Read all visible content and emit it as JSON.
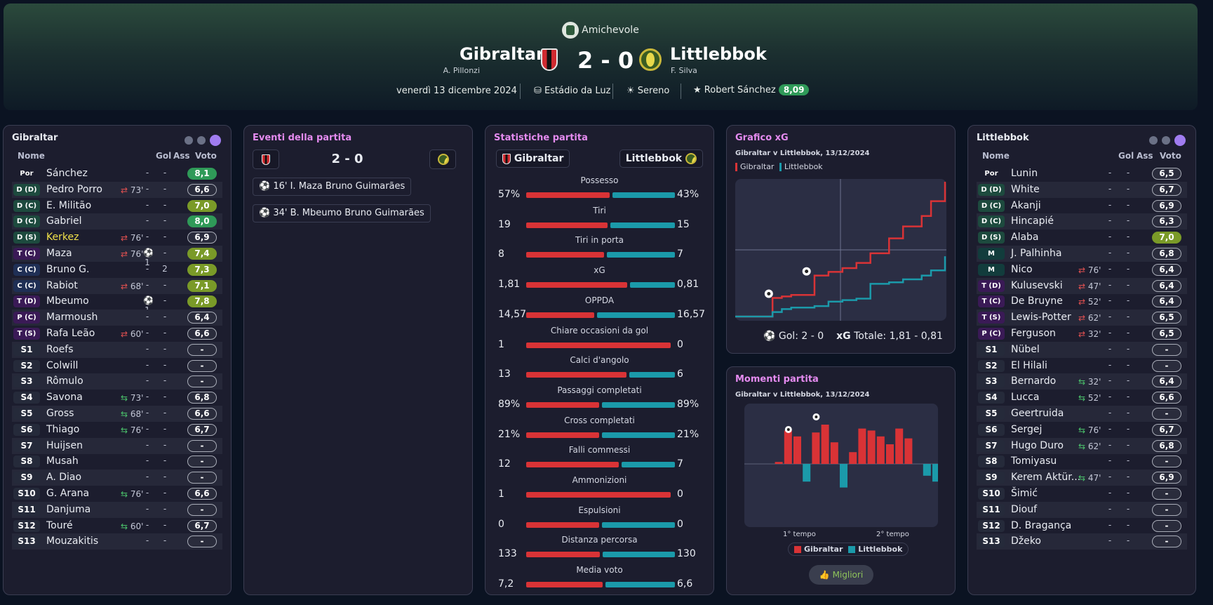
{
  "header": {
    "competition": "Amichevole",
    "home": {
      "name": "Gibraltar",
      "coach": "A. Pillonzi"
    },
    "away": {
      "name": "Littlebbok",
      "coach": "F. Silva"
    },
    "score": "2 - 0",
    "date": "venerdì 13 dicembre 2024",
    "stadium": "Estádio da Luz",
    "weather": "Sereno",
    "mvp": "Robert Sánchez",
    "mvp_rating": "8,09"
  },
  "columns": {
    "name": "Nome",
    "goals": "Gol",
    "assists": "Ass",
    "rating": "Voto"
  },
  "home_panel": {
    "title": "Gibraltar",
    "players": [
      {
        "pos": "Por",
        "name": "Sánchez",
        "sub": "",
        "gol": "-",
        "ass": "-",
        "vote": "8,1"
      },
      {
        "pos": "D (D)",
        "name": "Pedro Porro",
        "sub": "73'",
        "gol": "-",
        "ass": "-",
        "vote": "6,6"
      },
      {
        "pos": "D (C)",
        "name": "E. Militão",
        "sub": "",
        "gol": "-",
        "ass": "-",
        "vote": "7,0"
      },
      {
        "pos": "D (C)",
        "name": "Gabriel",
        "sub": "",
        "gol": "-",
        "ass": "-",
        "vote": "8,0"
      },
      {
        "pos": "D (S)",
        "name": "Kerkez",
        "sub": "76'",
        "gol": "-",
        "ass": "-",
        "vote": "6,9"
      },
      {
        "pos": "T (C)",
        "name": "Maza",
        "sub": "76'",
        "gol": "⚽1",
        "ass": "-",
        "vote": "7,4"
      },
      {
        "pos": "C (C)",
        "name": "Bruno G.",
        "sub": "",
        "gol": "-",
        "ass": "2",
        "vote": "7,3"
      },
      {
        "pos": "C (C)",
        "name": "Rabiot",
        "sub": "68'",
        "gol": "-",
        "ass": "-",
        "vote": "7,1"
      },
      {
        "pos": "T (D)",
        "name": "Mbeumo",
        "sub": "",
        "gol": "⚽1",
        "ass": "-",
        "vote": "7,8"
      },
      {
        "pos": "P (C)",
        "name": "Marmoush",
        "sub": "",
        "gol": "-",
        "ass": "-",
        "vote": "6,4"
      },
      {
        "pos": "T (S)",
        "name": "Rafa Leão",
        "sub": "60'",
        "gol": "-",
        "ass": "-",
        "vote": "6,6"
      },
      {
        "pos": "S1",
        "name": "Roefs",
        "sub": "",
        "gol": "-",
        "ass": "-",
        "vote": "-"
      },
      {
        "pos": "S2",
        "name": "Colwill",
        "sub": "",
        "gol": "-",
        "ass": "-",
        "vote": "-"
      },
      {
        "pos": "S3",
        "name": "Rômulo",
        "sub": "",
        "gol": "-",
        "ass": "-",
        "vote": "-"
      },
      {
        "pos": "S4",
        "name": "Savona",
        "sub": "73'",
        "gol": "-",
        "ass": "-",
        "vote": "6,8"
      },
      {
        "pos": "S5",
        "name": "Gross",
        "sub": "68'",
        "gol": "-",
        "ass": "-",
        "vote": "6,6"
      },
      {
        "pos": "S6",
        "name": "Thiago",
        "sub": "76'",
        "gol": "-",
        "ass": "-",
        "vote": "6,7"
      },
      {
        "pos": "S7",
        "name": "Huijsen",
        "sub": "",
        "gol": "-",
        "ass": "-",
        "vote": "-"
      },
      {
        "pos": "S8",
        "name": "Musah",
        "sub": "",
        "gol": "-",
        "ass": "-",
        "vote": "-"
      },
      {
        "pos": "S9",
        "name": "A. Diao",
        "sub": "",
        "gol": "-",
        "ass": "-",
        "vote": "-"
      },
      {
        "pos": "S10",
        "name": "G. Arana",
        "sub": "76'",
        "gol": "-",
        "ass": "-",
        "vote": "6,6"
      },
      {
        "pos": "S11",
        "name": "Danjuma",
        "sub": "",
        "gol": "-",
        "ass": "-",
        "vote": "-"
      },
      {
        "pos": "S12",
        "name": "Touré",
        "sub": "60'",
        "gol": "-",
        "ass": "-",
        "vote": "6,7"
      },
      {
        "pos": "S13",
        "name": "Mouzakitis",
        "sub": "",
        "gol": "-",
        "ass": "-",
        "vote": "-"
      }
    ]
  },
  "away_panel": {
    "title": "Littlebbok",
    "players": [
      {
        "pos": "Por",
        "name": "Lunin",
        "sub": "",
        "gol": "-",
        "ass": "-",
        "vote": "6,5"
      },
      {
        "pos": "D (D)",
        "name": "White",
        "sub": "",
        "gol": "-",
        "ass": "-",
        "vote": "6,7"
      },
      {
        "pos": "D (C)",
        "name": "Akanji",
        "sub": "",
        "gol": "-",
        "ass": "-",
        "vote": "6,9"
      },
      {
        "pos": "D (C)",
        "name": "Hincapié",
        "sub": "",
        "gol": "-",
        "ass": "-",
        "vote": "6,3"
      },
      {
        "pos": "D (S)",
        "name": "Alaba",
        "sub": "",
        "gol": "-",
        "ass": "-",
        "vote": "7,0"
      },
      {
        "pos": "M",
        "name": "J. Palhinha",
        "sub": "",
        "gol": "-",
        "ass": "-",
        "vote": "6,8"
      },
      {
        "pos": "M",
        "name": "Nico",
        "sub": "76'",
        "gol": "-",
        "ass": "-",
        "vote": "6,4"
      },
      {
        "pos": "T (D)",
        "name": "Kulusevski",
        "sub": "47'",
        "gol": "-",
        "ass": "-",
        "vote": "6,4"
      },
      {
        "pos": "T (C)",
        "name": "De Bruyne",
        "sub": "52'",
        "gol": "-",
        "ass": "-",
        "vote": "6,4"
      },
      {
        "pos": "T (S)",
        "name": "Lewis-Potter",
        "sub": "62'",
        "gol": "-",
        "ass": "-",
        "vote": "6,5"
      },
      {
        "pos": "P (C)",
        "name": "Ferguson",
        "sub": "32'",
        "gol": "-",
        "ass": "-",
        "vote": "6,5"
      },
      {
        "pos": "S1",
        "name": "Nübel",
        "sub": "",
        "gol": "-",
        "ass": "-",
        "vote": "-"
      },
      {
        "pos": "S2",
        "name": "El Hilali",
        "sub": "",
        "gol": "-",
        "ass": "-",
        "vote": "-"
      },
      {
        "pos": "S3",
        "name": "Bernardo",
        "sub": "32'",
        "gol": "-",
        "ass": "-",
        "vote": "6,4"
      },
      {
        "pos": "S4",
        "name": "Lucca",
        "sub": "52'",
        "gol": "-",
        "ass": "-",
        "vote": "6,6"
      },
      {
        "pos": "S5",
        "name": "Geertruida",
        "sub": "",
        "gol": "-",
        "ass": "-",
        "vote": "-"
      },
      {
        "pos": "S6",
        "name": "Sergej",
        "sub": "76'",
        "gol": "-",
        "ass": "-",
        "vote": "6,7"
      },
      {
        "pos": "S7",
        "name": "Hugo Duro",
        "sub": "62'",
        "gol": "-",
        "ass": "-",
        "vote": "6,8"
      },
      {
        "pos": "S8",
        "name": "Tomiyasu",
        "sub": "",
        "gol": "-",
        "ass": "-",
        "vote": "-"
      },
      {
        "pos": "S9",
        "name": "Kerem Aktür...",
        "sub": "47'",
        "gol": "-",
        "ass": "-",
        "vote": "6,9"
      },
      {
        "pos": "S10",
        "name": "Šimić",
        "sub": "",
        "gol": "-",
        "ass": "-",
        "vote": "-"
      },
      {
        "pos": "S11",
        "name": "Diouf",
        "sub": "",
        "gol": "-",
        "ass": "-",
        "vote": "-"
      },
      {
        "pos": "S12",
        "name": "D. Bragança",
        "sub": "",
        "gol": "-",
        "ass": "-",
        "vote": "-"
      },
      {
        "pos": "S13",
        "name": "Džeko",
        "sub": "",
        "gol": "-",
        "ass": "-",
        "vote": "-"
      }
    ]
  },
  "events_panel": {
    "title": "Eventi della partita",
    "score": "2 - 0",
    "events": [
      {
        "minute": "16'",
        "scorer": "I. Maza",
        "assist": "Bruno Guimarães"
      },
      {
        "minute": "34'",
        "scorer": "B. Mbeumo",
        "assist": "Bruno Guimarães"
      }
    ]
  },
  "stats_panel": {
    "title": "Statistiche partita",
    "home": "Gibraltar",
    "away": "Littlebbok",
    "stats": [
      {
        "label": "Possesso",
        "home": "57%",
        "away": "43%",
        "h": 57,
        "a": 43
      },
      {
        "label": "Tiri",
        "home": "19",
        "away": "15",
        "h": 19,
        "a": 15
      },
      {
        "label": "Tiri in porta",
        "home": "8",
        "away": "7",
        "h": 8,
        "a": 7
      },
      {
        "label": "xG",
        "home": "1,81",
        "away": "0,81",
        "h": 1.81,
        "a": 0.81
      },
      {
        "label": "OPPDA",
        "home": "14,57",
        "away": "16,57",
        "h": 14.57,
        "a": 16.57
      },
      {
        "label": "Chiare occasioni da gol",
        "home": "1",
        "away": "0",
        "h": 1,
        "a": 0
      },
      {
        "label": "Calci d'angolo",
        "home": "13",
        "away": "6",
        "h": 13,
        "a": 6
      },
      {
        "label": "Passaggi completati",
        "home": "89%",
        "away": "89%",
        "h": 89,
        "a": 89
      },
      {
        "label": "Cross completati",
        "home": "21%",
        "away": "21%",
        "h": 21,
        "a": 21
      },
      {
        "label": "Falli commessi",
        "home": "12",
        "away": "7",
        "h": 12,
        "a": 7
      },
      {
        "label": "Ammonizioni",
        "home": "1",
        "away": "0",
        "h": 1,
        "a": 0
      },
      {
        "label": "Espulsioni",
        "home": "0",
        "away": "0",
        "h": 0,
        "a": 0
      },
      {
        "label": "Distanza percorsa",
        "home": "133",
        "away": "130",
        "h": 133,
        "a": 130
      },
      {
        "label": "Media voto",
        "home": "7,2",
        "away": "6,6",
        "h": 7.2,
        "a": 6.6
      }
    ]
  },
  "xg_panel": {
    "title": "Grafico xG",
    "subtitle": "Gibraltar v Littlebbok, 13/12/2024",
    "legend_home": "Gibraltar",
    "legend_away": "Littlebbok",
    "goals_label": "Gol: 2 - 0",
    "xg_label": "xG",
    "xg_total": "Totale: 1,81 - 0,81"
  },
  "moments_panel": {
    "title": "Momenti partita",
    "subtitle": "Gibraltar v Littlebbok, 13/12/2024",
    "first_half": "1° tempo",
    "second_half": "2° tempo",
    "legend_home": "Gibraltar",
    "legend_away": "Littlebbok",
    "button": "Migliori"
  },
  "colors": {
    "home": "#d93336",
    "away": "#1b9aaa",
    "accent": "#e58bf0"
  },
  "chart_data": [
    {
      "type": "line",
      "title": "Grafico xG",
      "x_label": "minute",
      "x": [
        0,
        16,
        20,
        24,
        34,
        40,
        46,
        52,
        58,
        66,
        72,
        80,
        84,
        90
      ],
      "series": [
        {
          "name": "Gibraltar",
          "values": [
            0,
            0.25,
            0.27,
            0.29,
            0.55,
            0.6,
            0.65,
            0.72,
            0.85,
            1.05,
            1.21,
            1.35,
            1.55,
            1.81
          ]
        },
        {
          "name": "Littlebbok",
          "values": [
            0,
            0.06,
            0.1,
            0.12,
            0.14,
            0.2,
            0.22,
            0.24,
            0.44,
            0.46,
            0.5,
            0.55,
            0.62,
            0.81
          ]
        }
      ]
    },
    {
      "type": "bar",
      "title": "Momenti partita",
      "x_label": "5-minute intervals",
      "categories": [
        "1",
        "2",
        "3",
        "4",
        "5",
        "6",
        "7",
        "8",
        "9",
        "10",
        "11",
        "12",
        "13",
        "14",
        "15",
        "16",
        "17",
        "18",
        "19",
        "20",
        "21"
      ],
      "series": [
        {
          "name": "Gibraltar",
          "values": [
            0,
            0,
            0,
            0.05,
            0.85,
            0.7,
            0,
            0.8,
            1,
            0.55,
            0,
            0.3,
            0.9,
            0.85,
            0.7,
            0.5,
            0.9,
            0.65,
            0,
            0,
            0
          ]
        },
        {
          "name": "Littlebbok",
          "values": [
            0,
            0,
            0,
            0,
            0,
            0,
            0.45,
            0,
            0,
            0,
            0.6,
            0,
            0,
            0,
            0,
            0,
            0,
            0,
            0,
            0.3,
            0.45
          ]
        }
      ]
    }
  ]
}
